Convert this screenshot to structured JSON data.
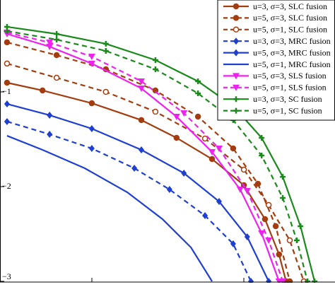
{
  "chart_data": {
    "type": "line",
    "ylog": true,
    "xlim": [
      0,
      10
    ],
    "ylim": [
      -3,
      0
    ],
    "yticks": [
      {
        "value": -1,
        "label": "−1"
      },
      {
        "value": -2,
        "label": "−2"
      },
      {
        "value": -3,
        "label": "−3"
      }
    ],
    "legend": "top-right",
    "series": [
      {
        "name": "u=3, σ=3, SLC fusion",
        "color": "#a33d0f",
        "dash": false,
        "marker": "circle",
        "x": [
          0.21,
          1.27,
          2.74,
          4.22,
          5.27,
          6.33,
          7.28,
          7.91,
          8.33,
          8.54
        ],
        "values": [
          -0.903,
          -0.985,
          -1.119,
          -1.298,
          -1.485,
          -1.709,
          -1.985,
          -2.343,
          -2.716,
          -3.0
        ]
      },
      {
        "name": "u=5, σ=3, SLC fusion",
        "color": "#a33d0f",
        "dash": true,
        "marker": "circle",
        "x": [
          0.21,
          1.69,
          3.16,
          4.64,
          5.91,
          6.96,
          7.7,
          8.23,
          8.65
        ],
        "values": [
          -0.477,
          -0.612,
          -0.761,
          -0.985,
          -1.261,
          -1.597,
          -1.97,
          -2.418,
          -3.0
        ]
      },
      {
        "name": "u=5, σ=1, SLC fusion",
        "color": "#a33d0f",
        "dash": true,
        "marker": "circle-open",
        "x": [
          0.21,
          1.69,
          3.16,
          4.64,
          6.12,
          7.28,
          8.02,
          8.65,
          9.07
        ],
        "values": [
          -0.701,
          -0.851,
          -1.0,
          -1.209,
          -1.493,
          -1.821,
          -2.194,
          -2.567,
          -3.0
        ]
      },
      {
        "name": "u=3, σ=3, MRC fusion",
        "color": "#1f3fd0",
        "dash": true,
        "marker": "diamond",
        "x": [
          0.21,
          1.48,
          2.74,
          4.01,
          5.06,
          6.12,
          6.96,
          7.49
        ],
        "values": [
          -1.313,
          -1.448,
          -1.597,
          -1.806,
          -2.03,
          -2.306,
          -2.604,
          -3.0
        ]
      },
      {
        "name": "u=5, σ=3, MRC fusion",
        "color": "#1f3fd0",
        "dash": false,
        "marker": "diamond",
        "x": [
          0.21,
          1.48,
          2.74,
          4.22,
          5.49,
          6.54,
          7.38,
          8.02
        ],
        "values": [
          -1.127,
          -1.246,
          -1.388,
          -1.612,
          -1.858,
          -2.157,
          -2.53,
          -3.0
        ]
      },
      {
        "name": "u=5, σ=1, MRC fusion",
        "color": "#1f3fd0",
        "dash": false,
        "marker": "none",
        "x": [
          0.21,
          1.27,
          2.53,
          3.8,
          4.85,
          5.7,
          6.33
        ],
        "values": [
          -1.463,
          -1.612,
          -1.806,
          -2.06,
          -2.343,
          -2.642,
          -3.0
        ]
      },
      {
        "name": "u=5, σ=3, SLS fusion",
        "color": "#ee22ee",
        "dash": false,
        "marker": "triangle",
        "x": [
          0.21,
          1.48,
          2.74,
          4.22,
          5.27,
          6.33,
          7.17,
          7.81,
          8.33
        ],
        "values": [
          -0.388,
          -0.522,
          -0.701,
          -0.963,
          -1.261,
          -1.634,
          -2.03,
          -2.493,
          -3.0
        ]
      },
      {
        "name": "u=5, σ=1, SLS fusion",
        "color": "#ee22ee",
        "dash": true,
        "marker": "triangle",
        "x": [
          0.21,
          1.48,
          2.74,
          4.22,
          5.49,
          6.54,
          7.38,
          8.02,
          8.44
        ],
        "values": [
          -0.373,
          -0.478,
          -0.627,
          -0.888,
          -1.224,
          -1.597,
          -2.045,
          -2.567,
          -3.0
        ]
      },
      {
        "name": "u=3, σ=3, SC fusion",
        "color": "#1a8a1a",
        "dash": false,
        "marker": "plus",
        "x": [
          0.21,
          1.69,
          3.16,
          4.64,
          5.91,
          6.96,
          7.81,
          8.44,
          8.97,
          9.39
        ],
        "values": [
          -0.313,
          -0.388,
          -0.492,
          -0.664,
          -0.888,
          -1.149,
          -1.485,
          -1.896,
          -2.418,
          -3.0
        ]
      },
      {
        "name": "u=5, σ=1, SC fusion",
        "color": "#1a8a1a",
        "dash": true,
        "marker": "plus",
        "x": [
          0.21,
          1.69,
          3.16,
          4.64,
          5.91,
          6.96,
          7.81,
          8.44,
          8.86,
          9.18
        ],
        "values": [
          -0.358,
          -0.448,
          -0.567,
          -0.761,
          -1.015,
          -1.298,
          -1.672,
          -2.119,
          -2.567,
          -3.0
        ]
      }
    ]
  }
}
